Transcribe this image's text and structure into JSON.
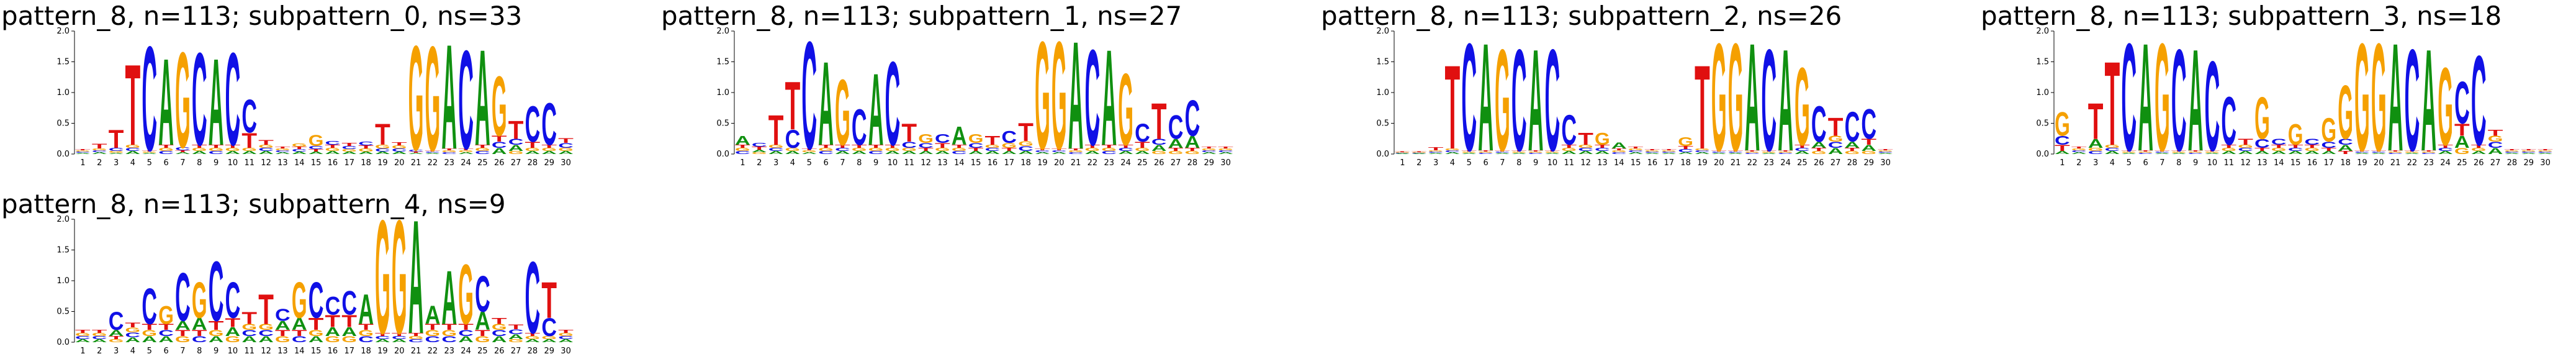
{
  "chart_data": [
    {
      "type": "logo",
      "title": "pattern_8, n=113; subpattern_0, ns=33",
      "categories": [
        "1",
        "2",
        "3",
        "4",
        "5",
        "6",
        "7",
        "8",
        "9",
        "10",
        "11",
        "12",
        "13",
        "14",
        "15",
        "16",
        "17",
        "18",
        "19",
        "20",
        "21",
        "22",
        "23",
        "24",
        "25",
        "26",
        "27",
        "28",
        "29",
        "30"
      ],
      "series": [
        {
          "name": "A",
          "color": "#109010",
          "values": [
            0.02,
            0.03,
            0.02,
            0.05,
            0.02,
            1.45,
            0.03,
            0.05,
            1.45,
            0.05,
            0.05,
            0.05,
            0.03,
            0.04,
            0.04,
            0.05,
            0.04,
            0.04,
            0.04,
            0.04,
            0.02,
            0.02,
            1.75,
            0.03,
            1.6,
            0.1,
            0.1,
            0.05,
            0.05,
            0.05
          ]
        },
        {
          "name": "C",
          "color": "#1010e6",
          "values": [
            0.02,
            0.03,
            0.05,
            0.05,
            1.75,
            0.05,
            0.05,
            1.55,
            0.05,
            1.55,
            0.55,
            0.05,
            0.03,
            0.04,
            0.05,
            0.06,
            0.05,
            0.06,
            0.05,
            0.05,
            0.03,
            0.02,
            0.03,
            1.65,
            0.05,
            0.1,
            0.1,
            0.6,
            0.7,
            0.08
          ]
        },
        {
          "name": "G",
          "color": "#f5a000",
          "values": [
            0.02,
            0.03,
            0.03,
            0.05,
            0.02,
            0.05,
            1.6,
            0.05,
            0.05,
            0.05,
            0.05,
            0.05,
            0.03,
            0.05,
            0.18,
            0.05,
            0.04,
            0.05,
            0.06,
            0.05,
            1.75,
            1.75,
            0.03,
            0.03,
            0.05,
            1.0,
            0.05,
            0.05,
            0.05,
            0.05
          ]
        },
        {
          "name": "T",
          "color": "#e01010",
          "values": [
            0.02,
            0.08,
            0.3,
            1.35,
            0.02,
            0.05,
            0.03,
            0.05,
            0.05,
            0.05,
            0.25,
            0.08,
            0.03,
            0.04,
            0.04,
            0.05,
            0.05,
            0.05,
            0.35,
            0.05,
            0.02,
            0.02,
            0.03,
            0.03,
            0.05,
            0.1,
            0.3,
            0.1,
            0.05,
            0.08
          ]
        }
      ],
      "ylim": [
        0,
        2
      ],
      "yticks": [
        {
          "value": 0,
          "label": "0.0"
        },
        0.5,
        {
          "value": 1,
          "label": "1.0"
        },
        1.5,
        {
          "value": 2,
          "label": "2.0"
        }
      ]
    },
    {
      "type": "logo",
      "title": "pattern_8, n=113; subpattern_1, ns=27",
      "categories": [
        "1",
        "2",
        "3",
        "4",
        "5",
        "6",
        "7",
        "8",
        "9",
        "10",
        "11",
        "12",
        "13",
        "14",
        "15",
        "16",
        "17",
        "18",
        "19",
        "20",
        "21",
        "22",
        "23",
        "24",
        "25",
        "26",
        "27",
        "28",
        "29",
        "30"
      ],
      "series": [
        {
          "name": "A",
          "color": "#109010",
          "values": [
            0.15,
            0.04,
            0.05,
            0.05,
            0.03,
            1.4,
            0.05,
            0.05,
            1.2,
            0.05,
            0.05,
            0.05,
            0.05,
            0.3,
            0.05,
            0.05,
            0.05,
            0.05,
            0.03,
            0.03,
            1.8,
            0.05,
            1.6,
            0.05,
            0.05,
            0.1,
            0.15,
            0.2,
            0.03,
            0.03
          ]
        },
        {
          "name": "C",
          "color": "#1010e6",
          "values": [
            0.05,
            0.06,
            0.05,
            0.3,
            1.8,
            0.05,
            0.05,
            0.6,
            0.05,
            1.4,
            0.1,
            0.08,
            0.15,
            0.05,
            0.08,
            0.05,
            0.2,
            0.08,
            0.03,
            0.03,
            0.03,
            1.6,
            0.05,
            0.05,
            0.3,
            0.1,
            0.4,
            0.6,
            0.03,
            0.03
          ]
        },
        {
          "name": "G",
          "color": "#f5a000",
          "values": [
            0.05,
            0.03,
            0.05,
            0.05,
            0.03,
            0.05,
            1.1,
            0.05,
            0.05,
            0.05,
            0.05,
            0.15,
            0.05,
            0.05,
            0.15,
            0.05,
            0.08,
            0.08,
            1.8,
            1.8,
            0.03,
            0.05,
            0.05,
            1.2,
            0.05,
            0.05,
            0.05,
            0.05,
            0.03,
            0.03
          ]
        },
        {
          "name": "T",
          "color": "#e01010",
          "values": [
            0.05,
            0.05,
            0.5,
            0.8,
            0.03,
            0.05,
            0.05,
            0.05,
            0.05,
            0.05,
            0.3,
            0.05,
            0.08,
            0.05,
            0.05,
            0.15,
            0.05,
            0.3,
            0.03,
            0.03,
            0.03,
            0.05,
            0.05,
            0.05,
            0.1,
            0.6,
            0.05,
            0.05,
            0.03,
            0.03
          ]
        }
      ],
      "ylim": [
        0,
        2
      ],
      "yticks": [
        {
          "value": 0,
          "label": "0.0"
        },
        0.5,
        {
          "value": 1,
          "label": "1.0"
        },
        1.5,
        {
          "value": 2,
          "label": "2.0"
        }
      ]
    },
    {
      "type": "logo",
      "title": "pattern_8, n=113; subpattern_2, ns=26",
      "categories": [
        "1",
        "2",
        "3",
        "4",
        "5",
        "6",
        "7",
        "8",
        "9",
        "10",
        "11",
        "12",
        "13",
        "14",
        "15",
        "16",
        "17",
        "18",
        "19",
        "20",
        "21",
        "22",
        "23",
        "24",
        "25",
        "26",
        "27",
        "28",
        "29",
        "30"
      ],
      "series": [
        {
          "name": "A",
          "color": "#109010",
          "values": [
            0.01,
            0.01,
            0.02,
            0.03,
            0.02,
            1.8,
            0.02,
            0.02,
            1.7,
            0.02,
            0.05,
            0.05,
            0.05,
            0.1,
            0.03,
            0.02,
            0.02,
            0.03,
            0.03,
            0.02,
            0.02,
            1.8,
            0.02,
            1.7,
            0.05,
            0.1,
            0.1,
            0.1,
            0.1,
            0.02
          ]
        },
        {
          "name": "C",
          "color": "#1010e6",
          "values": [
            0.01,
            0.01,
            0.02,
            0.03,
            1.8,
            0.02,
            0.02,
            1.7,
            0.02,
            1.7,
            0.5,
            0.05,
            0.05,
            0.03,
            0.03,
            0.02,
            0.02,
            0.05,
            0.03,
            0.02,
            0.02,
            0.02,
            1.7,
            0.02,
            0.05,
            0.6,
            0.1,
            0.5,
            0.5,
            0.02
          ]
        },
        {
          "name": "G",
          "color": "#f5a000",
          "values": [
            0.01,
            0.01,
            0.02,
            0.03,
            0.02,
            0.02,
            1.7,
            0.02,
            0.02,
            0.02,
            0.05,
            0.05,
            0.2,
            0.03,
            0.03,
            0.02,
            0.02,
            0.15,
            0.03,
            1.8,
            1.8,
            0.02,
            0.02,
            0.02,
            1.3,
            0.05,
            0.1,
            0.05,
            0.05,
            0.02
          ]
        },
        {
          "name": "T",
          "color": "#e01010",
          "values": [
            0.01,
            0.01,
            0.05,
            1.4,
            0.02,
            0.02,
            0.02,
            0.02,
            0.02,
            0.02,
            0.05,
            0.2,
            0.05,
            0.03,
            0.03,
            0.02,
            0.02,
            0.05,
            1.4,
            0.02,
            0.02,
            0.02,
            0.02,
            0.02,
            0.05,
            0.05,
            0.3,
            0.05,
            0.1,
            0.02
          ]
        }
      ],
      "ylim": [
        0,
        2
      ],
      "yticks": [
        {
          "value": 0,
          "label": "0.0"
        },
        0.5,
        {
          "value": 1,
          "label": "1.0"
        },
        1.5,
        {
          "value": 2,
          "label": "2.0"
        }
      ]
    },
    {
      "type": "logo",
      "title": "pattern_8, n=113; subpattern_3, ns=18",
      "categories": [
        "1",
        "2",
        "3",
        "4",
        "5",
        "6",
        "7",
        "8",
        "9",
        "10",
        "11",
        "12",
        "13",
        "14",
        "15",
        "16",
        "17",
        "18",
        "19",
        "20",
        "21",
        "22",
        "23",
        "24",
        "25",
        "26",
        "27",
        "28",
        "29",
        "30"
      ],
      "series": [
        {
          "name": "A",
          "color": "#109010",
          "values": [
            0.05,
            0.03,
            0.15,
            0.05,
            0.02,
            1.8,
            0.02,
            0.02,
            1.7,
            0.02,
            0.05,
            0.05,
            0.05,
            0.05,
            0.05,
            0.05,
            0.05,
            0.1,
            0.02,
            0.02,
            1.8,
            0.02,
            1.7,
            0.05,
            0.2,
            0.05,
            0.1,
            0.02,
            0.02,
            0.02
          ]
        },
        {
          "name": "C",
          "color": "#1010e6",
          "values": [
            0.15,
            0.03,
            0.05,
            0.05,
            1.8,
            0.02,
            0.02,
            1.7,
            0.02,
            1.5,
            0.8,
            0.05,
            0.15,
            0.1,
            0.05,
            0.1,
            0.1,
            0.1,
            0.02,
            0.02,
            0.02,
            1.7,
            0.02,
            0.05,
            0.7,
            1.5,
            0.1,
            0.02,
            0.02,
            0.02
          ]
        },
        {
          "name": "G",
          "color": "#f5a000",
          "values": [
            0.4,
            0.03,
            0.05,
            0.05,
            0.02,
            0.02,
            1.8,
            0.02,
            0.02,
            0.02,
            0.05,
            0.05,
            0.7,
            0.05,
            0.35,
            0.05,
            0.4,
            0.9,
            1.8,
            1.8,
            0.02,
            0.02,
            0.02,
            1.3,
            0.1,
            0.05,
            0.1,
            0.02,
            0.02,
            0.02
          ]
        },
        {
          "name": "T",
          "color": "#e01010",
          "values": [
            0.1,
            0.03,
            0.6,
            1.4,
            0.02,
            0.02,
            0.02,
            0.02,
            0.02,
            0.02,
            0.05,
            0.1,
            0.05,
            0.05,
            0.05,
            0.05,
            0.05,
            0.05,
            0.02,
            0.02,
            0.02,
            0.02,
            0.02,
            0.05,
            0.2,
            0.05,
            0.1,
            0.02,
            0.02,
            0.02
          ]
        }
      ],
      "ylim": [
        0,
        2
      ],
      "yticks": [
        {
          "value": 0,
          "label": "0.0"
        },
        0.5,
        {
          "value": 1,
          "label": "1.0"
        },
        1.5,
        {
          "value": 2,
          "label": "2.0"
        }
      ]
    },
    {
      "type": "logo",
      "title": "pattern_8, n=113; subpattern_4, ns=9",
      "categories": [
        "1",
        "2",
        "3",
        "4",
        "5",
        "6",
        "7",
        "8",
        "9",
        "10",
        "11",
        "12",
        "13",
        "14",
        "15",
        "16",
        "17",
        "18",
        "19",
        "20",
        "21",
        "22",
        "23",
        "24",
        "25",
        "26",
        "27",
        "28",
        "29",
        "30"
      ],
      "series": [
        {
          "name": "A",
          "color": "#109010",
          "values": [
            0.05,
            0.05,
            0.1,
            0.08,
            0.1,
            0.1,
            0.15,
            0.2,
            0.1,
            0.15,
            0.1,
            0.1,
            0.15,
            0.2,
            0.1,
            0.15,
            0.15,
            0.5,
            0.05,
            0.05,
            1.9,
            0.3,
            0.9,
            0.1,
            0.3,
            0.1,
            0.08,
            0.05,
            0.05,
            0.05
          ]
        },
        {
          "name": "C",
          "color": "#1010e6",
          "values": [
            0.05,
            0.05,
            0.3,
            0.08,
            0.6,
            0.1,
            0.8,
            0.1,
            1.0,
            0.6,
            0.1,
            0.1,
            0.2,
            0.1,
            0.6,
            0.3,
            0.4,
            0.1,
            0.05,
            0.05,
            0.05,
            0.1,
            0.1,
            0.1,
            0.6,
            0.1,
            0.08,
            1.2,
            0.3,
            0.05
          ]
        },
        {
          "name": "G",
          "color": "#f5a000",
          "values": [
            0.05,
            0.05,
            0.05,
            0.08,
            0.1,
            0.3,
            0.1,
            0.6,
            0.1,
            0.1,
            0.1,
            0.1,
            0.1,
            0.6,
            0.1,
            0.1,
            0.1,
            0.1,
            1.9,
            1.9,
            0.05,
            0.1,
            0.1,
            1.0,
            0.1,
            0.1,
            0.05,
            0.05,
            0.05,
            0.05
          ]
        },
        {
          "name": "T",
          "color": "#e01010",
          "values": [
            0.05,
            0.05,
            0.05,
            0.08,
            0.1,
            0.1,
            0.1,
            0.1,
            0.15,
            0.15,
            0.2,
            0.5,
            0.1,
            0.1,
            0.2,
            0.2,
            0.2,
            0.1,
            0.05,
            0.05,
            0.05,
            0.1,
            0.1,
            0.1,
            0.1,
            0.1,
            0.08,
            0.05,
            0.6,
            0.05
          ]
        }
      ],
      "ylim": [
        0,
        2
      ],
      "yticks": [
        {
          "value": 0,
          "label": "0.0"
        },
        0.5,
        {
          "value": 1,
          "label": "1.0"
        },
        1.5,
        {
          "value": 2,
          "label": "2.0"
        }
      ]
    }
  ]
}
